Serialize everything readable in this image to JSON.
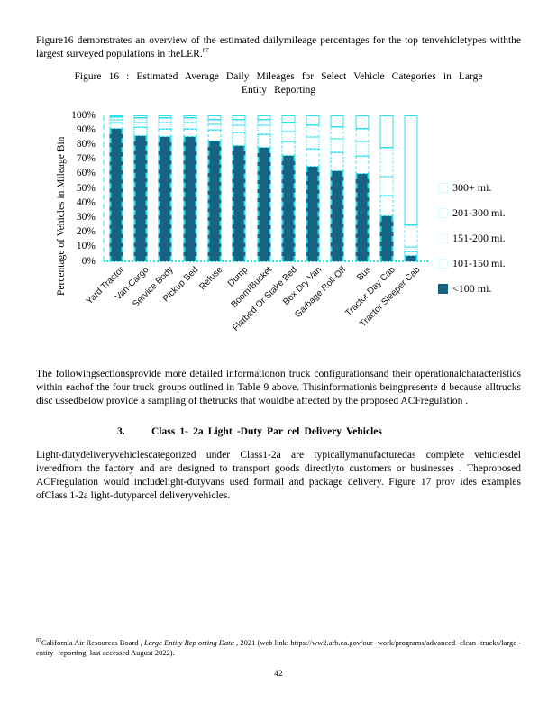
{
  "page": {
    "paragraph1": "Figure16 demonstrates an overview of the estimated dailymileage percentages for the top tenvehicletypes withthe largest surveyed populations in theLER.",
    "paragraph1_footnote_ref": "87",
    "figure_caption_line1": "Figure 16 : Estimated Average Daily Mileages for Select Vehicle Categories in Large",
    "figure_caption_line2": "Entity Reporting",
    "paragraph2": "The followingsectionsprovide more detailed informationon truck configurationsand their operationalcharacteristics within eachof the four truck groups outlined in Table 9 above. Thisinformationis beingpresente d because alltrucks disc ussedbelow provide a sampling of thetrucks that wouldbe affected by the proposed ACFregulation .",
    "heading_number": "3.",
    "heading_text": "Class 1- 2a Light -Duty Par cel Delivery Vehicles",
    "paragraph3": "Light-dutydeliveryvehiclescategorized under Class1-2a are typicallymanufacturedas complete vehiclesdel iveredfrom the factory and are designed to transport goods directlyto customers or businesses . Theproposed ACFregulation would includelight-dutyvans used formail and package delivery. Figure 17 prov ides examples ofClass 1-2a light-dutyparcel deliveryvehicles.",
    "footnote_ref": "87",
    "footnote_pre": "California Air Resources Board , ",
    "footnote_italic": "Large Entity Rep orting Data",
    "footnote_post": " , 2021 (web link: https://ww2.arb.ca.gov/our -work/programs/advanced -clean -trucks/large -entity -reporting, last accessed August 2022).",
    "page_number": "42"
  },
  "colors": {
    "bar_fill_dark": "#176384",
    "accent_cyan": "#29E2EE"
  },
  "chart_data": {
    "type": "bar",
    "stacked": true,
    "title": "Figure 16: Estimated Average Daily Mileages for Select Vehicle Categories in Large Entity Reporting",
    "xlabel": "",
    "ylabel": "Percentage of Vehicles in Mileage Bin",
    "ylim": [
      0,
      100
    ],
    "ytick_interval": 10,
    "ytick_format": "percent",
    "grid": false,
    "legend_position": "right",
    "categories": [
      "Yard Tractor",
      "Van-Cargo",
      "Service Body",
      "Pickup Bed",
      "Refuse",
      "Dump",
      "Boom/Bucket",
      "Flatbed Or Stake Bed",
      "Box Dry Van",
      "Garbage Roll-Off",
      "Bus",
      "Tractor Day Cab",
      "Tractor Sleeper Cab"
    ],
    "series": [
      {
        "name": "<100 mi.",
        "style": "solid-dark",
        "values": [
          91,
          86,
          85,
          85,
          82,
          79,
          78,
          72,
          65,
          62,
          60,
          31,
          4
        ]
      },
      {
        "name": "101-150 mi.",
        "style": "dashed-outline",
        "values": [
          4,
          6,
          6,
          6,
          8,
          9,
          9,
          10,
          12,
          13,
          12,
          14,
          3
        ]
      },
      {
        "name": "151-200 mi.",
        "style": "dotted-outline",
        "values": [
          2,
          3,
          4,
          4,
          4,
          5,
          6,
          7,
          8,
          9,
          10,
          13,
          3
        ]
      },
      {
        "name": "201-300 mi.",
        "style": "dashdot-outline",
        "values": [
          2,
          3,
          3,
          3,
          3,
          4,
          4,
          6,
          8,
          8,
          9,
          20,
          15
        ]
      },
      {
        "name": "300+ mi.",
        "style": "solid-outline",
        "values": [
          1,
          2,
          2,
          2,
          3,
          3,
          3,
          5,
          7,
          8,
          9,
          22,
          75
        ]
      }
    ],
    "legend": [
      {
        "label": "300+ mi.",
        "swatch": "solid-outline"
      },
      {
        "label": "201-300 mi.",
        "swatch": "dashdot-outline"
      },
      {
        "label": "151-200 mi.",
        "swatch": "dotted-outline"
      },
      {
        "label": "101-150 mi.",
        "swatch": "dashed-outline"
      },
      {
        "label": "<100 mi.",
        "swatch": "solid-dark"
      }
    ]
  }
}
